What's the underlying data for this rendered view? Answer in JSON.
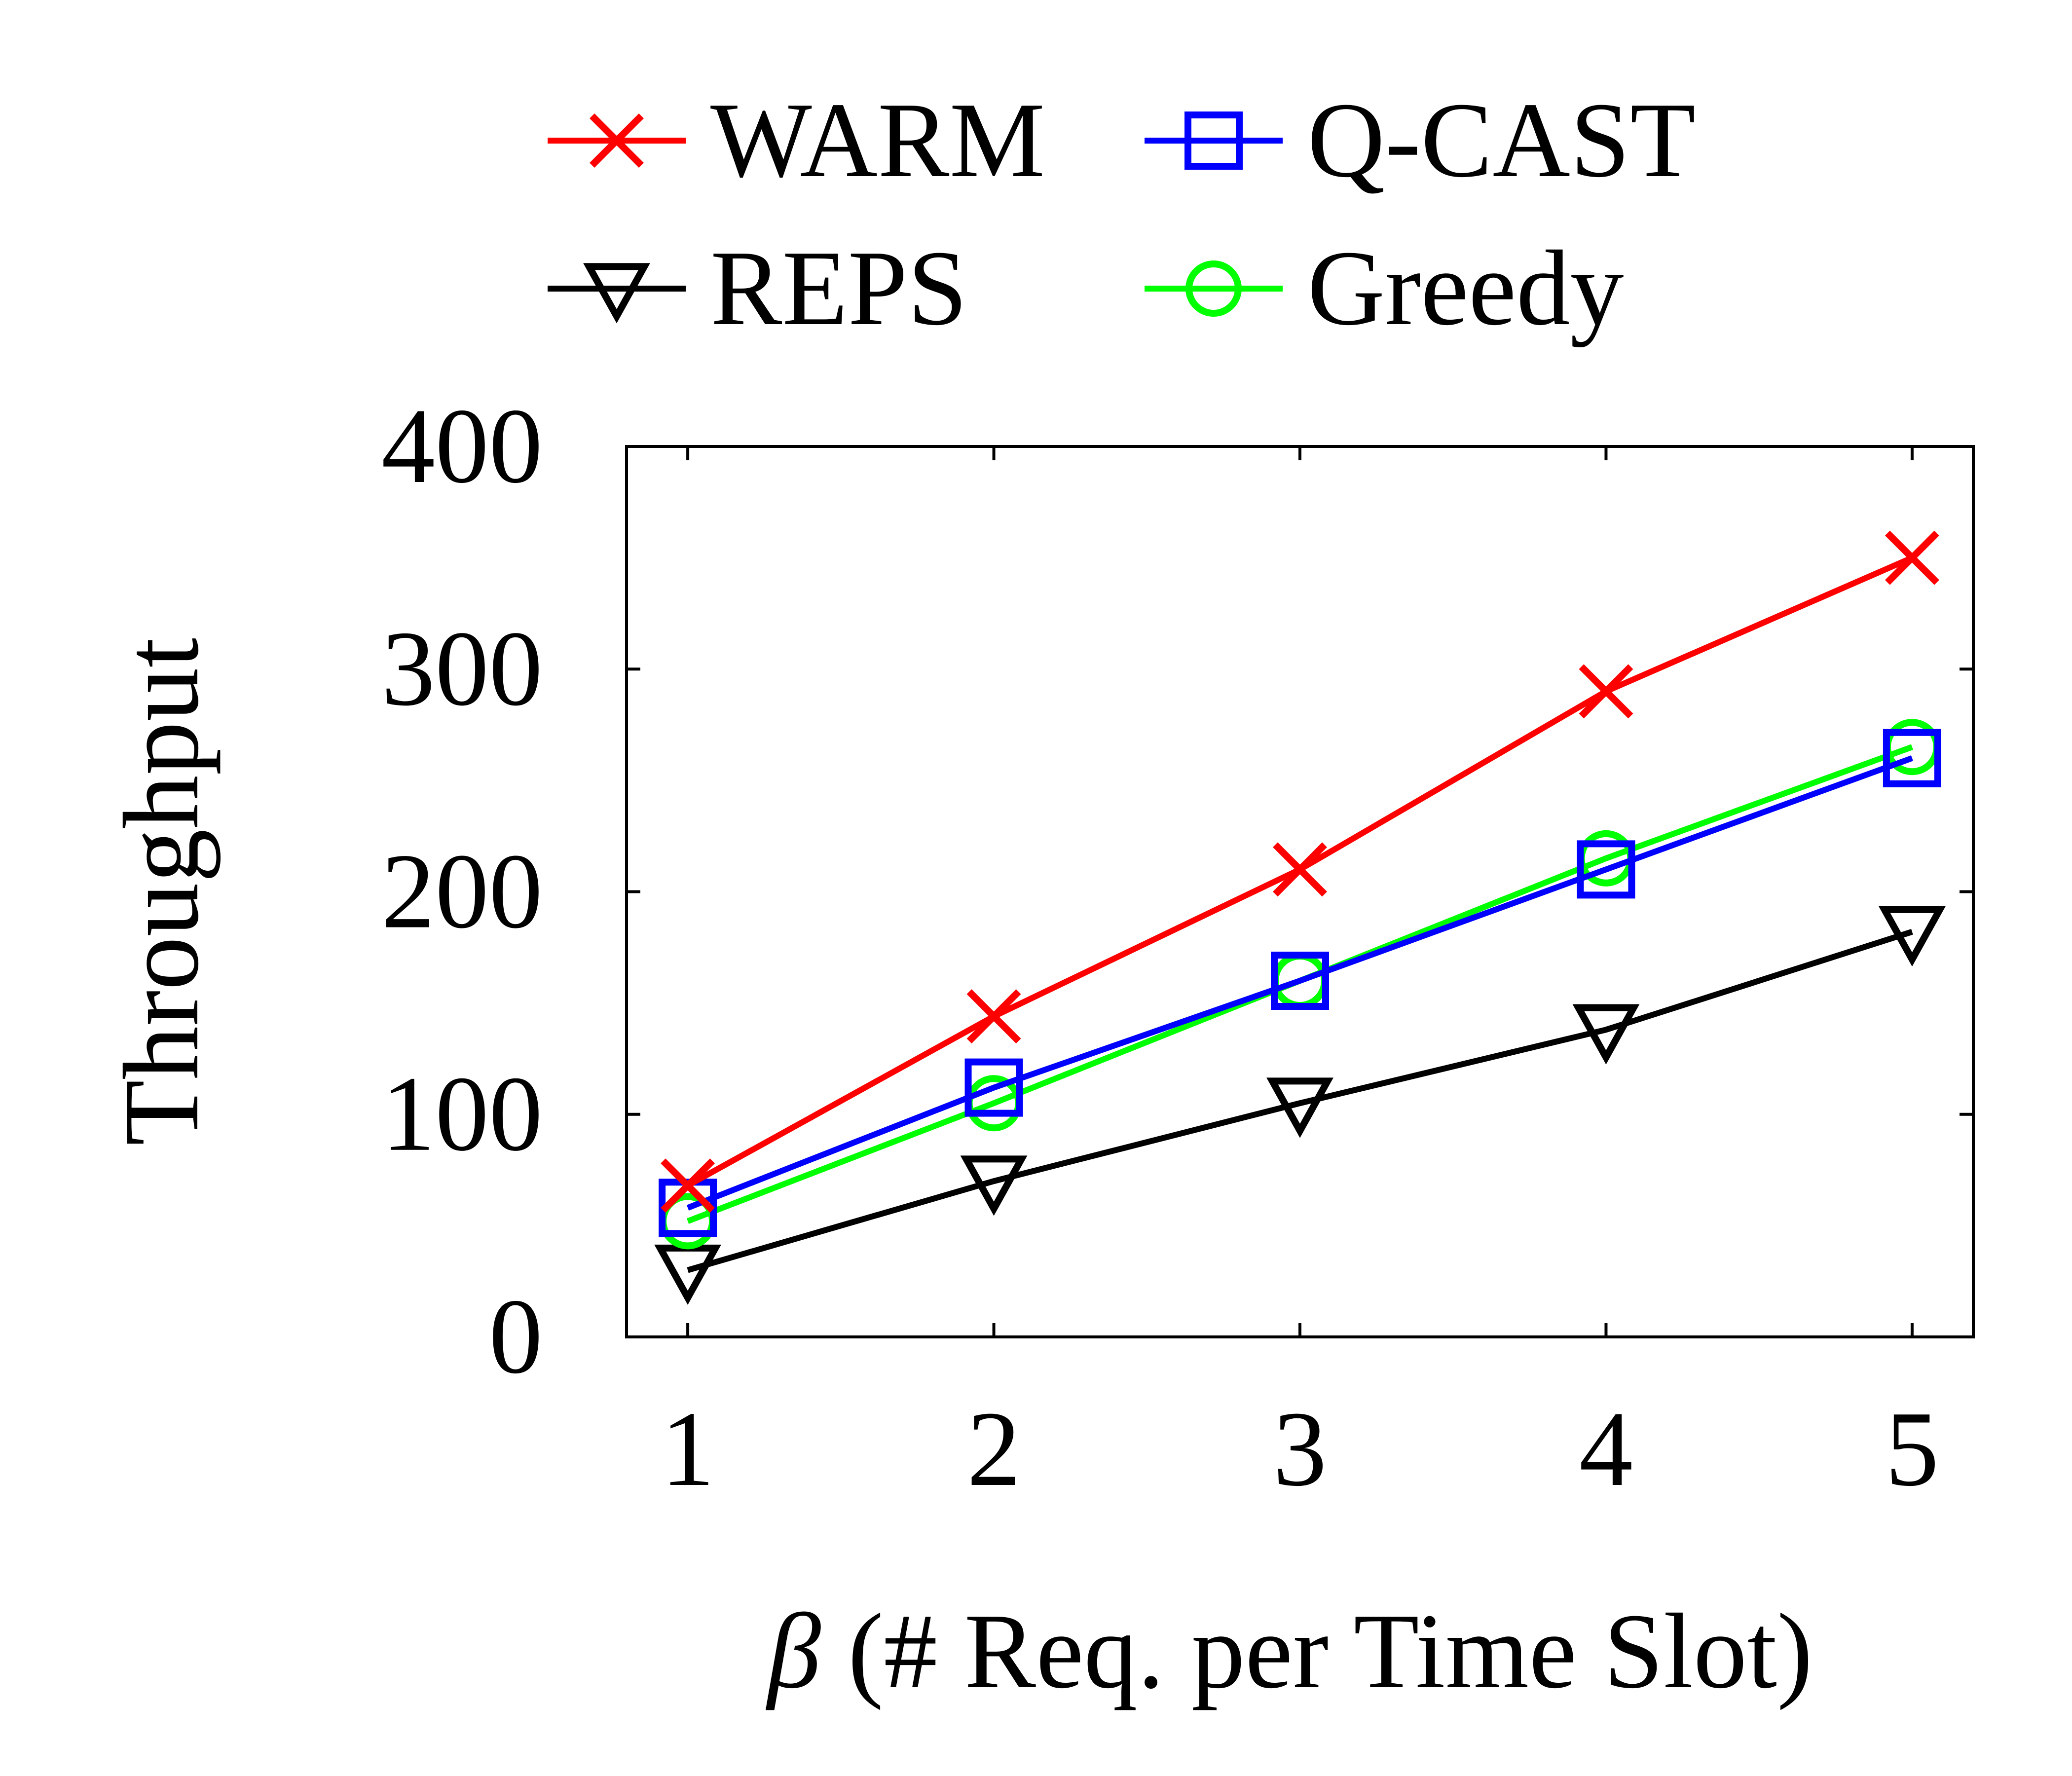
{
  "chart_data": {
    "type": "line",
    "x": [
      1,
      2,
      3,
      4,
      5
    ],
    "xlabel_symbol": "β",
    "xlabel_text": " (# Req. per Time Slot)",
    "ylabel": "Throughput",
    "xticks": [
      "1",
      "2",
      "3",
      "4",
      "5"
    ],
    "yticks": [
      "0",
      "100",
      "200",
      "300",
      "400"
    ],
    "ylim": [
      0,
      400
    ],
    "xlim": [
      0.8,
      5.2
    ],
    "grid": false,
    "legend_position": "top",
    "series": [
      {
        "name": "WARM",
        "marker": "x",
        "color": "#ff0000",
        "values": [
          68,
          144,
          210,
          290,
          350
        ]
      },
      {
        "name": "Q-CAST",
        "marker": "square",
        "color": "#0000ff",
        "values": [
          58,
          112,
          160,
          210,
          260
        ]
      },
      {
        "name": "REPS",
        "marker": "triangle-down",
        "color": "#000000",
        "values": [
          30,
          70,
          105,
          138,
          182
        ]
      },
      {
        "name": "Greedy",
        "marker": "circle",
        "color": "#00ff00",
        "values": [
          52,
          105,
          160,
          215,
          265
        ]
      }
    ]
  }
}
